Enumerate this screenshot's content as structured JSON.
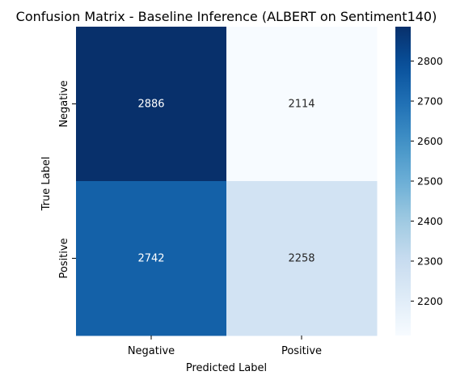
{
  "chart_data": {
    "type": "heatmap",
    "title": "Confusion Matrix - Baseline Inference (ALBERT on Sentiment140)",
    "xlabel": "Predicted Label",
    "ylabel": "True Label",
    "x_categories": [
      "Negative",
      "Positive"
    ],
    "y_categories": [
      "Negative",
      "Positive"
    ],
    "values": [
      [
        2886,
        2114
      ],
      [
        2742,
        2258
      ]
    ],
    "colormap": "Blues",
    "colorbar": {
      "min": 2114,
      "max": 2886,
      "ticks": [
        2200,
        2300,
        2400,
        2500,
        2600,
        2700,
        2800
      ]
    },
    "grid": false
  }
}
